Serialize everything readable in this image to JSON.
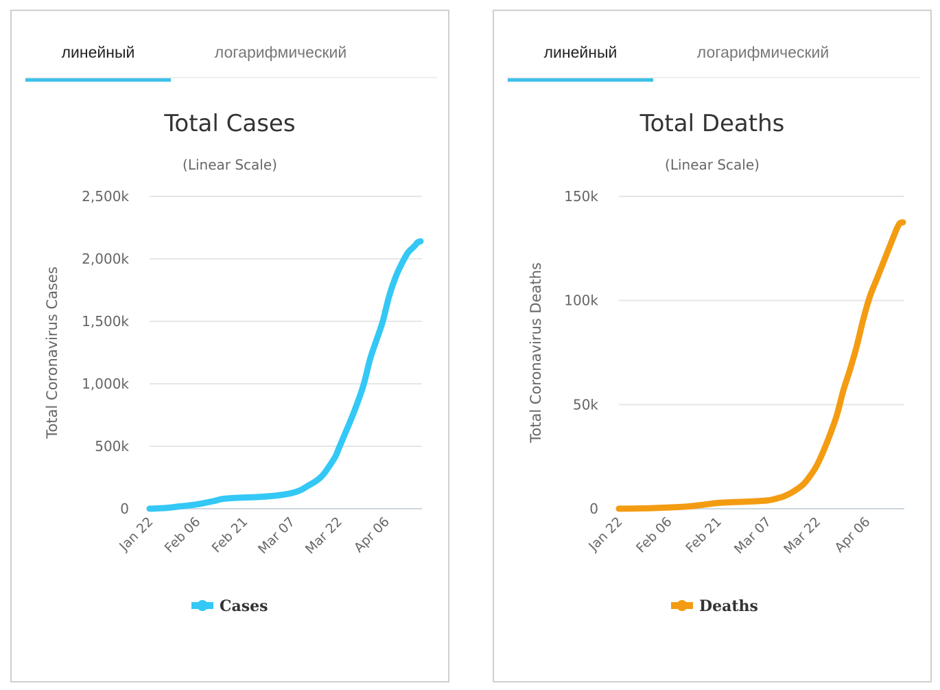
{
  "panels": [
    {
      "tabs": [
        {
          "label": "линейный",
          "active": true
        },
        {
          "label": "логарифмический",
          "active": false
        }
      ],
      "accent_color": "#3ec1e8"
    },
    {
      "tabs": [
        {
          "label": "линейный",
          "active": true
        },
        {
          "label": "логарифмический",
          "active": false
        }
      ],
      "accent_color": "#3ec1e8"
    }
  ],
  "chart_data": [
    {
      "type": "line",
      "title": "Total Cases",
      "subtitle": "(Linear Scale)",
      "xlabel": "",
      "ylabel": "Total Coronavirus Cases",
      "ylim": [
        0,
        2500000
      ],
      "yticks": [
        0,
        500000,
        1000000,
        1500000,
        2000000,
        2500000
      ],
      "ytick_labels": [
        "0",
        "500k",
        "1,000k",
        "1,500k",
        "2,000k",
        "2,500k"
      ],
      "xtick_labels": [
        "Jan 22",
        "Feb 06",
        "Feb 21",
        "Mar 07",
        "Mar 22",
        "Apr 06"
      ],
      "xtick_days": [
        0,
        15,
        30,
        45,
        60,
        75
      ],
      "x_range_days": [
        0,
        86
      ],
      "grid": true,
      "legend": "bottom-center",
      "series": [
        {
          "name": "Cases",
          "color": "#33c8f5",
          "x_days": [
            0,
            5,
            10,
            15,
            20,
            22,
            23,
            26,
            30,
            35,
            40,
            45,
            48,
            50,
            53,
            55,
            57,
            59,
            60,
            62,
            64,
            66,
            68,
            70,
            72,
            74,
            76,
            78,
            80,
            82,
            84,
            85,
            86
          ],
          "values": [
            600,
            6000,
            20000,
            35000,
            60000,
            72000,
            78000,
            85000,
            90000,
            95000,
            105000,
            125000,
            150000,
            180000,
            225000,
            270000,
            340000,
            420000,
            480000,
            600000,
            720000,
            850000,
            1000000,
            1200000,
            1350000,
            1500000,
            1700000,
            1850000,
            1960000,
            2050000,
            2100000,
            2130000,
            2140000
          ]
        }
      ]
    },
    {
      "type": "line",
      "title": "Total Deaths",
      "subtitle": "(Linear Scale)",
      "xlabel": "",
      "ylabel": "Total Coronavirus Deaths",
      "ylim": [
        0,
        150000
      ],
      "yticks": [
        0,
        50000,
        100000,
        150000
      ],
      "ytick_labels": [
        "0",
        "50k",
        "100k",
        "150k"
      ],
      "xtick_labels": [
        "Jan 22",
        "Feb 06",
        "Feb 21",
        "Mar 07",
        "Mar 22",
        "Apr 06"
      ],
      "xtick_days": [
        0,
        15,
        30,
        45,
        60,
        75
      ],
      "x_range_days": [
        0,
        86
      ],
      "grid": true,
      "legend": "bottom-center",
      "series": [
        {
          "name": "Deaths",
          "color": "#f39c12",
          "x_days": [
            0,
            10,
            20,
            25,
            30,
            35,
            40,
            45,
            48,
            50,
            52,
            54,
            56,
            58,
            60,
            62,
            64,
            66,
            68,
            70,
            72,
            74,
            76,
            78,
            80,
            82,
            84,
            85,
            86
          ],
          "values": [
            20,
            300,
            1000,
            1800,
            2800,
            3200,
            3500,
            4000,
            5000,
            6000,
            7500,
            9500,
            12000,
            16000,
            21000,
            28000,
            36000,
            45000,
            57000,
            67000,
            78000,
            91000,
            102000,
            110000,
            118000,
            126000,
            134000,
            137000,
            137500
          ]
        }
      ]
    }
  ]
}
